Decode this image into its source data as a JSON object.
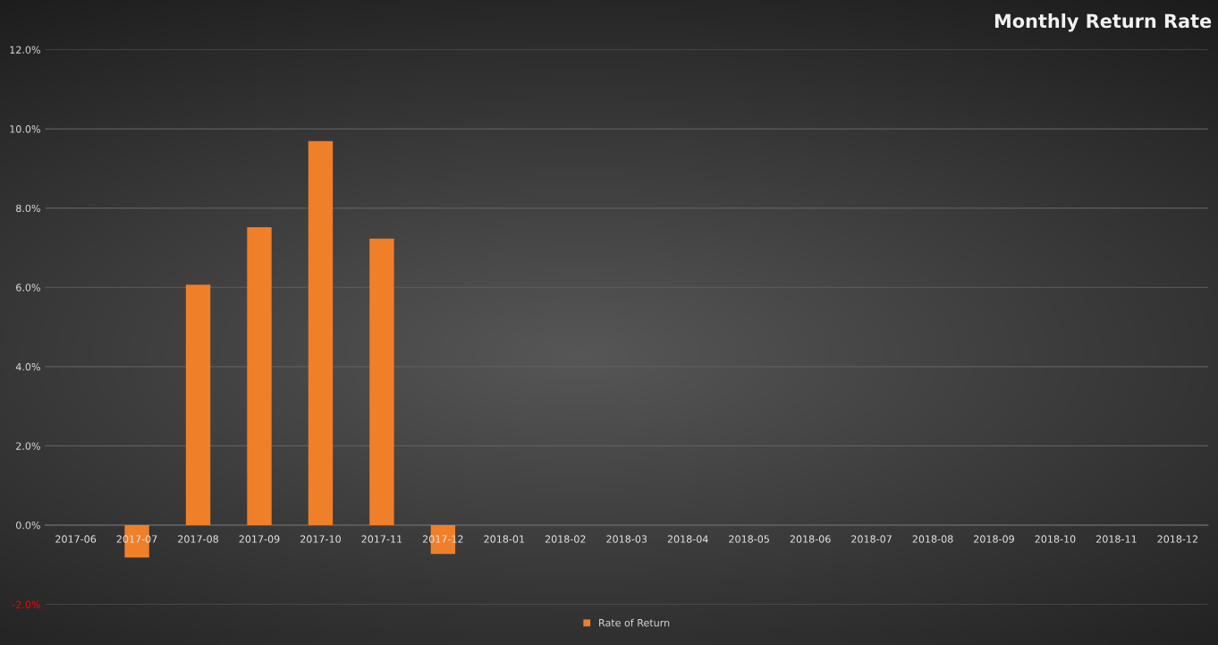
{
  "chart_data": {
    "type": "bar",
    "title": "Monthly Return Rate",
    "categories": [
      "2017-06",
      "2017-07",
      "2017-08",
      "2017-09",
      "2017-10",
      "2017-11",
      "2017-12",
      "2018-01",
      "2018-02",
      "2018-03",
      "2018-04",
      "2018-05",
      "2018-06",
      "2018-07",
      "2018-08",
      "2018-09",
      "2018-10",
      "2018-11",
      "2018-12"
    ],
    "series": [
      {
        "name": "Rate of Return",
        "color": "#f07f2a",
        "values": [
          null,
          -0.82,
          6.07,
          7.52,
          9.69,
          7.23,
          -0.73,
          null,
          null,
          null,
          null,
          null,
          null,
          null,
          null,
          null,
          null,
          null,
          null
        ]
      }
    ],
    "ylim": [
      -2,
      12
    ],
    "yticks": [
      {
        "value": -2,
        "label": "-2.0%"
      },
      {
        "value": 0,
        "label": "0.0%"
      },
      {
        "value": 2,
        "label": "2.0%"
      },
      {
        "value": 4,
        "label": "4.0%"
      },
      {
        "value": 6,
        "label": "6.0%"
      },
      {
        "value": 8,
        "label": "8.0%"
      },
      {
        "value": 10,
        "label": "10.0%"
      },
      {
        "value": 12,
        "label": "12.0%"
      }
    ],
    "grid": "y",
    "legend": "bottom"
  }
}
